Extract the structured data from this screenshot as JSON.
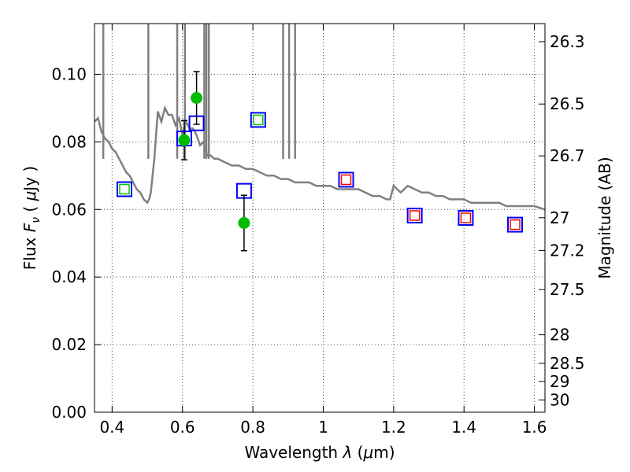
{
  "chart_data": {
    "type": "scatter",
    "xlabel": "Wavelength  λ (μm)",
    "ylabel": "Flux  F_ν  ( μJy )",
    "ylabel_parts": {
      "pre": "Flux  ",
      "F": "F",
      "nu": "ν",
      "mid": "  (  ",
      "mu": "μ",
      "post": "Jy )"
    },
    "xlabel_parts": {
      "pre": "Wavelength  ",
      "lambda": "λ",
      "open": " (",
      "mu": "μ",
      "post": "m)"
    },
    "y2label": "Magnitude (AB)",
    "xlim": [
      0.35,
      1.63
    ],
    "ylim": [
      0.0,
      0.115
    ],
    "grid": true,
    "x_ticks": [
      0.4,
      0.6,
      0.8,
      1.0,
      1.2,
      1.4,
      1.6
    ],
    "x_tick_labels": [
      "0.4",
      "0.6",
      "0.8",
      "1",
      "1.2",
      "1.4",
      "1.6"
    ],
    "y_ticks": [
      0.0,
      0.02,
      0.04,
      0.06,
      0.08,
      0.1
    ],
    "y_tick_labels": [
      "0.00",
      "0.02",
      "0.04",
      "0.06",
      "0.08",
      "0.10"
    ],
    "mag_ticks": [
      26.3,
      26.5,
      26.7,
      27.0,
      27.2,
      27.5,
      28.0,
      28.5,
      29.0,
      30.0
    ],
    "mag_tick_labels": [
      "26.3",
      "26.5",
      "26.7",
      "27",
      "27.2",
      "27.5",
      "28",
      "28.5",
      "29",
      "30"
    ],
    "series": [
      {
        "kind": "model_sed_line",
        "color": "#808080",
        "x": [
          0.35,
          0.36,
          0.37,
          0.38,
          0.39,
          0.4,
          0.41,
          0.42,
          0.43,
          0.44,
          0.45,
          0.46,
          0.47,
          0.48,
          0.49,
          0.5,
          0.505,
          0.51,
          0.52,
          0.53,
          0.54,
          0.55,
          0.56,
          0.57,
          0.58,
          0.59,
          0.6,
          0.61,
          0.62,
          0.63,
          0.64,
          0.65,
          0.66,
          0.67,
          0.68,
          0.69,
          0.7,
          0.72,
          0.74,
          0.76,
          0.78,
          0.8,
          0.82,
          0.84,
          0.86,
          0.88,
          0.9,
          0.92,
          0.94,
          0.96,
          0.98,
          1.0,
          1.02,
          1.04,
          1.06,
          1.08,
          1.1,
          1.12,
          1.14,
          1.16,
          1.18,
          1.19,
          1.2,
          1.22,
          1.24,
          1.26,
          1.28,
          1.3,
          1.32,
          1.34,
          1.36,
          1.38,
          1.4,
          1.42,
          1.44,
          1.46,
          1.48,
          1.5,
          1.52,
          1.54,
          1.56,
          1.58,
          1.6,
          1.63
        ],
        "y": [
          0.086,
          0.087,
          0.083,
          0.081,
          0.08,
          0.078,
          0.077,
          0.075,
          0.073,
          0.071,
          0.07,
          0.068,
          0.066,
          0.065,
          0.063,
          0.062,
          0.063,
          0.065,
          0.075,
          0.089,
          0.086,
          0.09,
          0.088,
          0.088,
          0.085,
          0.087,
          0.082,
          0.086,
          0.084,
          0.084,
          0.082,
          0.079,
          0.08,
          0.076,
          0.076,
          0.075,
          0.075,
          0.074,
          0.073,
          0.073,
          0.072,
          0.072,
          0.071,
          0.07,
          0.07,
          0.069,
          0.069,
          0.068,
          0.068,
          0.068,
          0.067,
          0.067,
          0.067,
          0.066,
          0.066,
          0.066,
          0.066,
          0.065,
          0.064,
          0.064,
          0.063,
          0.063,
          0.067,
          0.065,
          0.067,
          0.066,
          0.065,
          0.065,
          0.064,
          0.064,
          0.063,
          0.063,
          0.063,
          0.062,
          0.062,
          0.062,
          0.062,
          0.062,
          0.061,
          0.061,
          0.061,
          0.061,
          0.061,
          0.06
        ]
      },
      {
        "kind": "line_spikes",
        "color": "#808080",
        "spikes": [
          {
            "x": 0.375,
            "y": 0.12
          },
          {
            "x": 0.503,
            "y": 0.12
          },
          {
            "x": 0.585,
            "y": 0.12
          },
          {
            "x": 0.607,
            "y": 0.12
          },
          {
            "x": 0.662,
            "y": 0.12
          },
          {
            "x": 0.668,
            "y": 0.12
          },
          {
            "x": 0.675,
            "y": 0.12
          },
          {
            "x": 0.886,
            "y": 0.12
          },
          {
            "x": 0.903,
            "y": 0.12
          },
          {
            "x": 0.92,
            "y": 0.12
          }
        ]
      },
      {
        "kind": "model_photometry_green",
        "marker": "open-square",
        "edge_color": "#0000ff",
        "inner_color": "#00cc00",
        "points": [
          {
            "x": 0.435,
            "y": 0.066
          },
          {
            "x": 0.815,
            "y": 0.0865
          }
        ]
      },
      {
        "kind": "model_photometry_blue",
        "marker": "open-square",
        "edge_color": "#0000ff",
        "points": [
          {
            "x": 0.605,
            "y": 0.081
          },
          {
            "x": 0.64,
            "y": 0.0855
          },
          {
            "x": 0.775,
            "y": 0.0655
          }
        ]
      },
      {
        "kind": "model_photometry_red",
        "marker": "open-square",
        "edge_color": "#0000ff",
        "inner_color": "#ff0000",
        "points": [
          {
            "x": 1.065,
            "y": 0.0688
          },
          {
            "x": 1.26,
            "y": 0.0582
          },
          {
            "x": 1.405,
            "y": 0.0575
          },
          {
            "x": 1.545,
            "y": 0.0555
          }
        ]
      },
      {
        "kind": "observed",
        "marker": "filled-circle",
        "color": "#00bb00",
        "points": [
          {
            "x": 0.605,
            "y": 0.0805,
            "err": 0.0058
          },
          {
            "x": 0.64,
            "y": 0.093,
            "err": 0.0078
          },
          {
            "x": 0.775,
            "y": 0.056,
            "err": 0.0082
          }
        ]
      }
    ]
  }
}
